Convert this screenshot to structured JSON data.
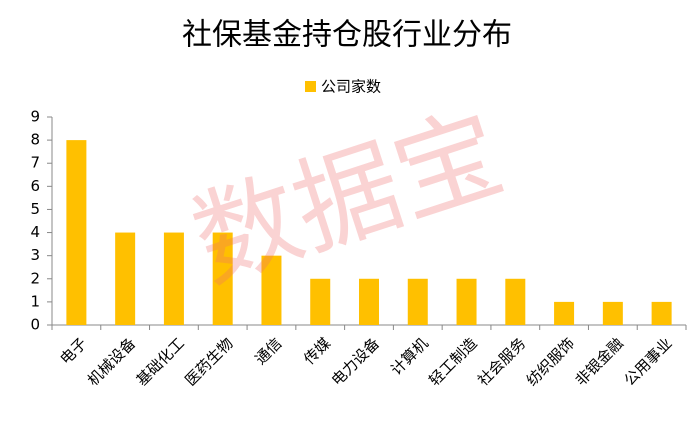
{
  "chart_data": {
    "type": "bar",
    "title": "社保基金持仓股行业分布",
    "watermark": "数据宝",
    "categories": [
      "电子",
      "机械设备",
      "基础化工",
      "医药生物",
      "通信",
      "传媒",
      "电力设备",
      "计算机",
      "轻工制造",
      "社会服务",
      "纺织服饰",
      "非银金融",
      "公用事业"
    ],
    "series": [
      {
        "name": "公司家数",
        "color": "#ffc000",
        "values": [
          8,
          4,
          4,
          4,
          3,
          2,
          2,
          2,
          2,
          2,
          1,
          1,
          1
        ]
      }
    ],
    "ylim": [
      0,
      9
    ],
    "yticks": [
      0,
      1,
      2,
      3,
      4,
      5,
      6,
      7,
      8,
      9
    ],
    "grid": false,
    "legend": "top"
  }
}
